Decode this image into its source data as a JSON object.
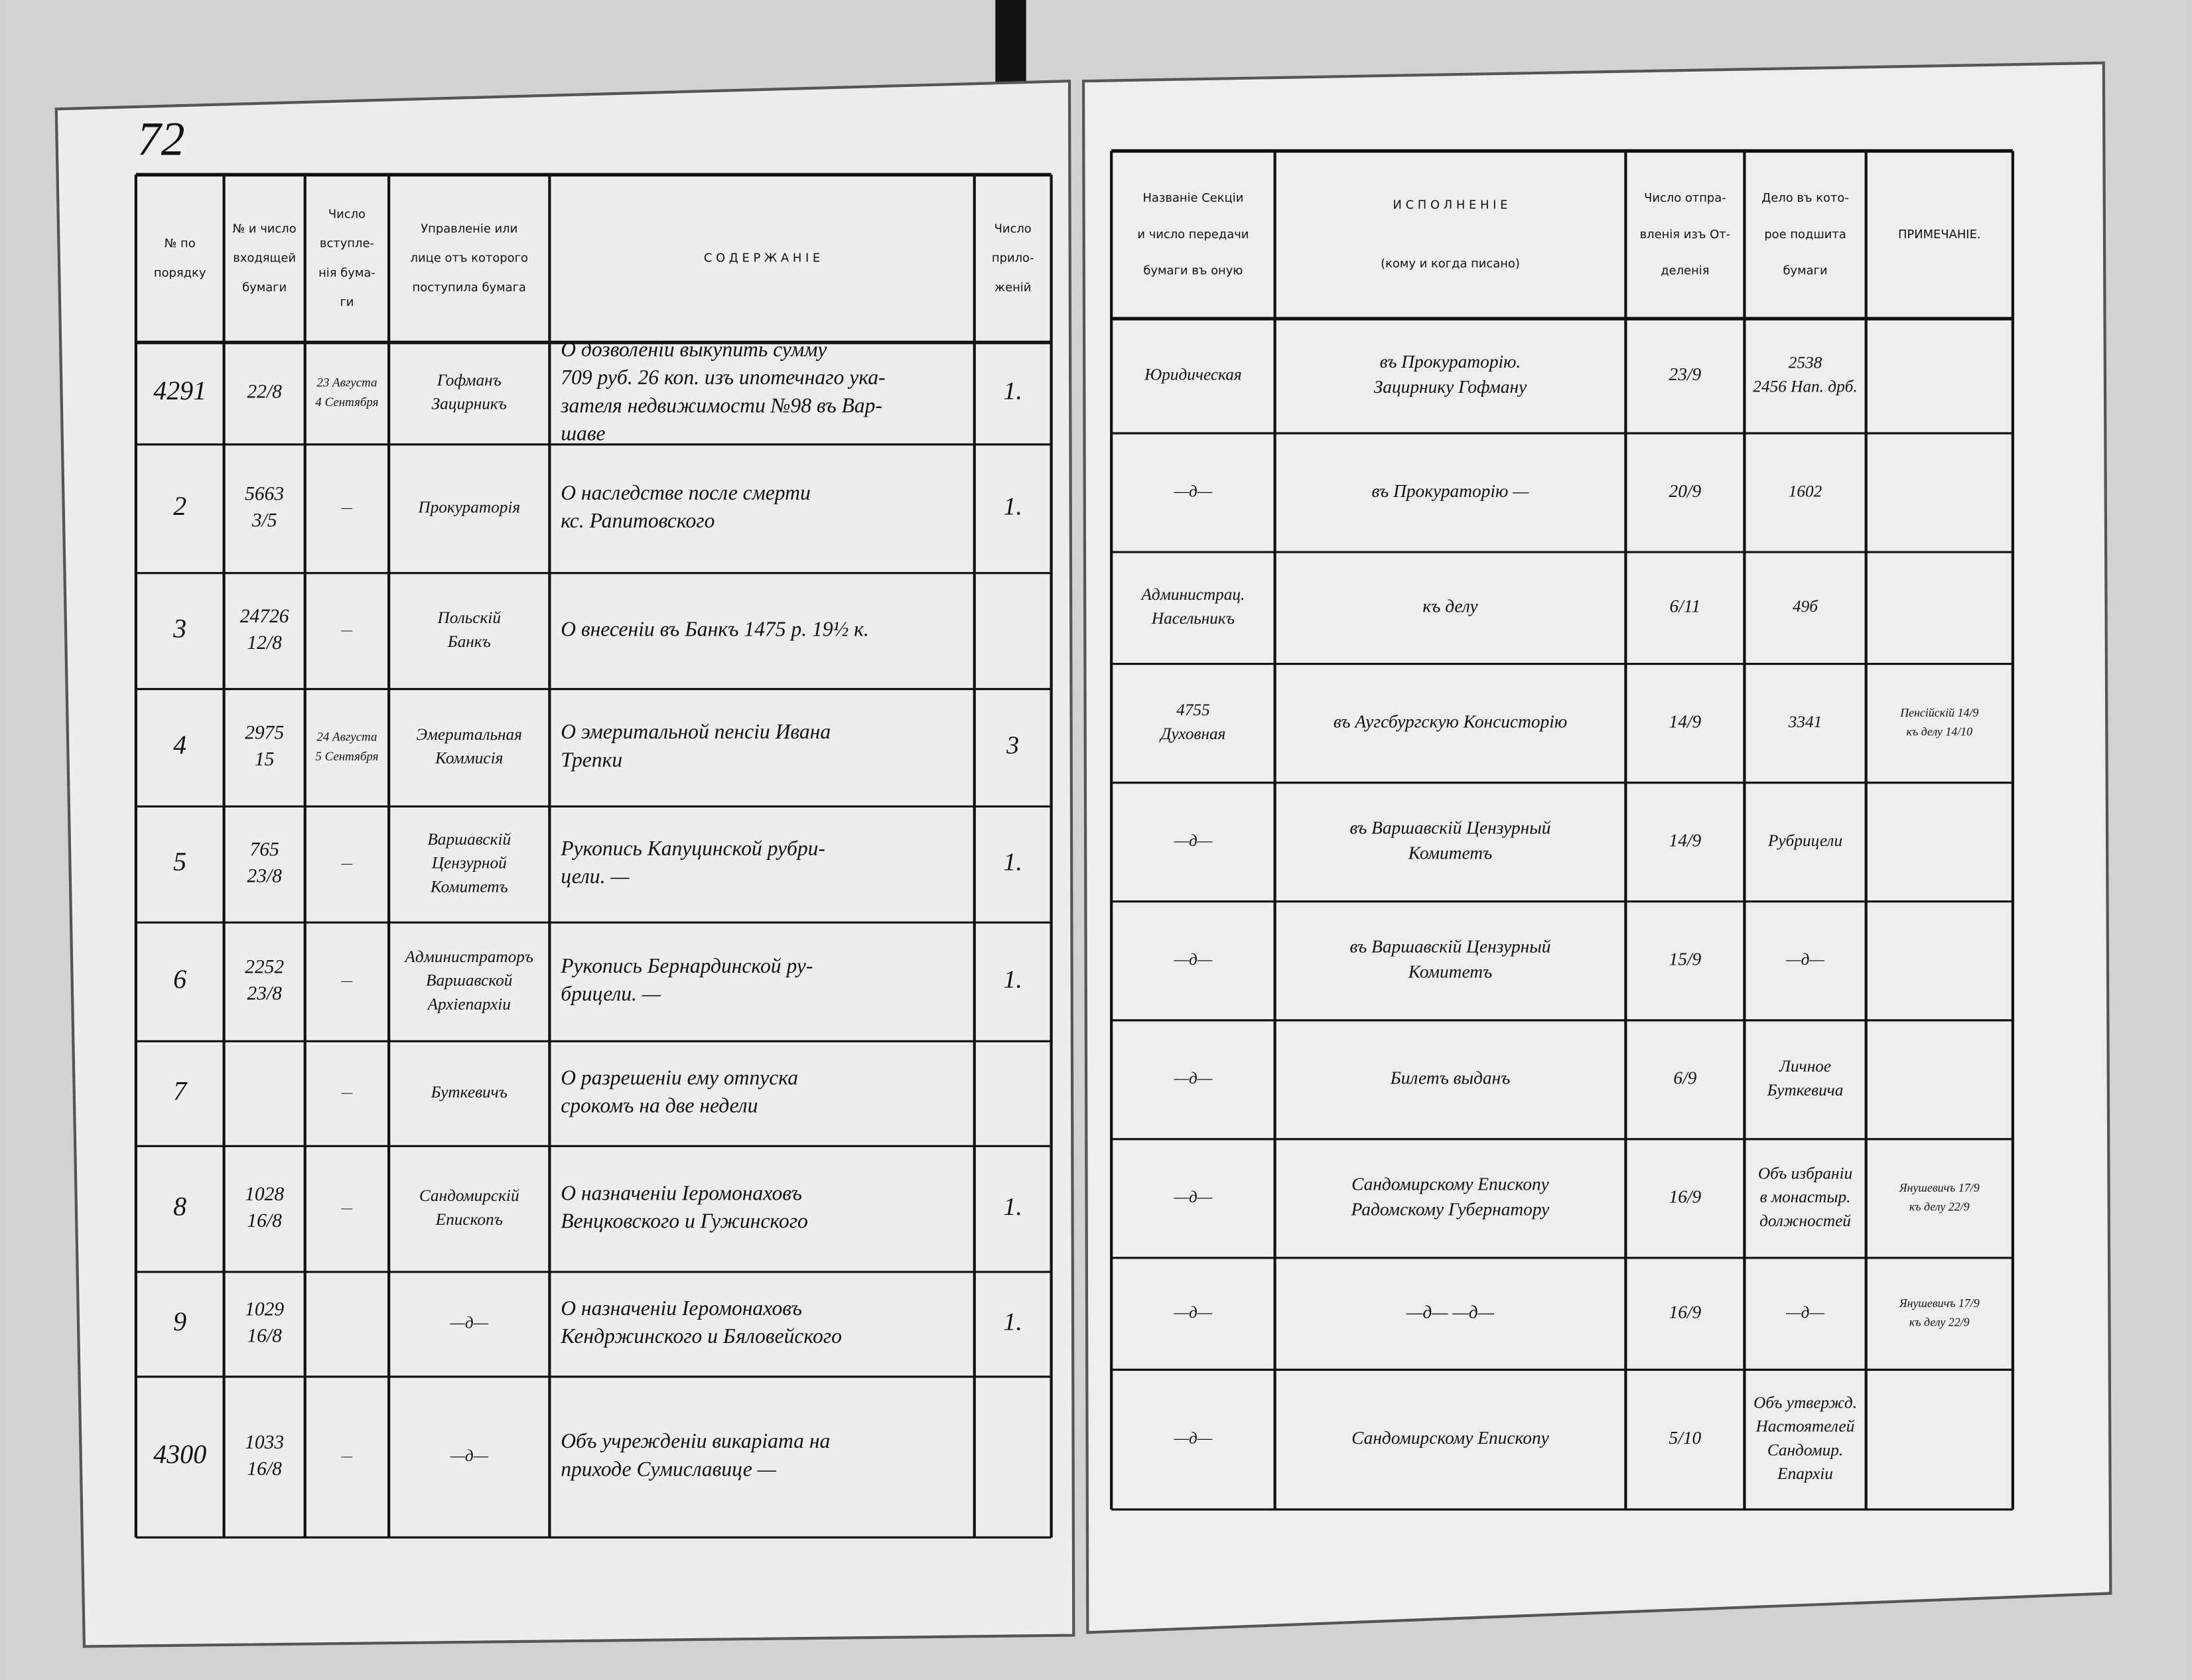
{
  "page_number": "72",
  "left_headers": [
    [
      "№ по",
      "порядку"
    ],
    [
      "№ и число",
      "входящей",
      "бумаги"
    ],
    [
      "Число",
      "вступле-",
      "нія бума-",
      "ги"
    ],
    [
      "Управленіе или",
      "лице отъ которого",
      "поступила бумага"
    ],
    [
      "С О Д Е Р Ж А Н І Е"
    ],
    [
      "Число",
      "прило-",
      "женій"
    ]
  ],
  "right_headers": [
    [
      "Названіе Секціи",
      "и число передачи",
      "бумаги въ оную"
    ],
    [
      "И С П О Л Н Е Н І Е",
      "(кому и когда писано)"
    ],
    [
      "Число отпра-",
      "вленія изъ От-",
      "деленія"
    ],
    [
      "Дело въ кото-",
      "рое подшита",
      "бумаги"
    ],
    [
      "ПРИМЕЧАНІЕ."
    ]
  ],
  "rows": [
    {
      "n": [
        "4291"
      ],
      "incoming": [
        "22/8"
      ],
      "date": [
        "23 Августа",
        "4 Сентября"
      ],
      "sender": [
        "Гофманъ",
        "Зацирникъ"
      ],
      "content": [
        "О дозволеніи выкупить сумму",
        "709 руб. 26 коп. изъ ипотечнаго ука-",
        "зателя недвижимости №98 въ Вар-",
        "шаве"
      ],
      "attachments": [
        "1."
      ],
      "section": [
        "Юридическая"
      ],
      "execution": [
        "въ Прокураторію.",
        "Зацирнику Гофману"
      ],
      "sent": [
        "23/9"
      ],
      "case": [
        "2538",
        "2456 Нап. дрб."
      ]
    },
    {
      "n": [
        "2"
      ],
      "incoming": [
        "5663",
        "3/5"
      ],
      "date": [
        "—"
      ],
      "sender": [
        "Прокураторія"
      ],
      "content": [
        "О наследстве после смерти",
        "кс. Рапитовского"
      ],
      "attachments": [
        "1."
      ],
      "section": [
        "—д—"
      ],
      "execution": [
        "въ Прокураторію —"
      ],
      "sent": [
        "20/9"
      ],
      "case": [
        "1602"
      ]
    },
    {
      "n": [
        "3"
      ],
      "incoming": [
        "24726",
        "12/8"
      ],
      "date": [
        "—"
      ],
      "sender": [
        "Польскій",
        "Банкъ"
      ],
      "content": [
        "О внесеніи въ Банкъ 1475 р. 19½ к."
      ],
      "section": [
        "Администрац.",
        "Насельникъ"
      ],
      "execution": [
        "къ делу"
      ],
      "sent": [
        "6/11"
      ],
      "case": [
        "49б"
      ]
    },
    {
      "n": [
        "4"
      ],
      "incoming": [
        "2975",
        "15"
      ],
      "date": [
        "24 Августа",
        "5 Сентября"
      ],
      "sender": [
        "Эмеритальная",
        "Коммисія"
      ],
      "content": [
        "О эмеритальной пенсіи Ивана",
        "Трепки"
      ],
      "attachments": [
        "3"
      ],
      "section": [
        "4755",
        "Духовная"
      ],
      "execution": [
        "въ Аугсбургскую Консисторію"
      ],
      "sent": [
        "14/9"
      ],
      "case": [
        "3341"
      ],
      "note": [
        "Пенсійскій 14/9",
        "къ делу 14/10"
      ]
    },
    {
      "n": [
        "5"
      ],
      "incoming": [
        "765",
        "23/8"
      ],
      "date": [
        "—"
      ],
      "sender": [
        "Варшавскій",
        "Цензурной",
        "Комитетъ"
      ],
      "content": [
        "Рукопись Капуцинской рубри-",
        "цели. —"
      ],
      "attachments": [
        "1."
      ],
      "section": [
        "—д—"
      ],
      "execution": [
        "въ Варшавскій Цензурный",
        "Комитетъ"
      ],
      "sent": [
        "14/9"
      ],
      "case": [
        "Рубрицели"
      ]
    },
    {
      "n": [
        "6"
      ],
      "incoming": [
        "2252",
        "23/8"
      ],
      "date": [
        "—"
      ],
      "sender": [
        "Администраторъ",
        "Варшавской",
        "Архіепархіи"
      ],
      "content": [
        "Рукопись Бернардинской ру-",
        "брицели. —"
      ],
      "attachments": [
        "1."
      ],
      "section": [
        "—д—"
      ],
      "execution": [
        "въ Варшавскій Цензурный",
        "Комитетъ"
      ],
      "sent": [
        "15/9"
      ],
      "case": [
        "—д—"
      ]
    },
    {
      "n": [
        "7"
      ],
      "date": [
        "—"
      ],
      "sender": [
        "Буткевичъ"
      ],
      "content": [
        "О разрешеніи ему отпуска",
        "срокомъ на две недели"
      ],
      "section": [
        "—д—"
      ],
      "execution": [
        "Билетъ выданъ"
      ],
      "sent": [
        "6/9"
      ],
      "case": [
        "Личное",
        "Буткевича"
      ]
    },
    {
      "n": [
        "8"
      ],
      "incoming": [
        "1028",
        "16/8"
      ],
      "date": [
        "—"
      ],
      "sender": [
        "Сандомирскій",
        "Епископъ"
      ],
      "content": [
        "О назначеніи Іеромонаховъ",
        "Венцковского и Гужинского"
      ],
      "attachments": [
        "1."
      ],
      "section": [
        "—д—"
      ],
      "execution": [
        "Сандомирскому Епископу",
        "Радомскому Губернатору"
      ],
      "sent": [
        "16/9"
      ],
      "case": [
        "Объ избраніи",
        "в монастыр.",
        "должностей"
      ],
      "note": [
        "Янушевичъ 17/9",
        "къ делу 22/9"
      ]
    },
    {
      "n": [
        "9"
      ],
      "incoming": [
        "1029",
        "16/8"
      ],
      "sender": [
        "—д—"
      ],
      "content": [
        "О назначеніи Іеромонаховъ",
        "Кендржинского и Бяловейского"
      ],
      "attachments": [
        "1."
      ],
      "section": [
        "—д—"
      ],
      "execution": [
        "—д— —д—"
      ],
      "sent": [
        "16/9"
      ],
      "case": [
        "—д—"
      ],
      "note": [
        "Янушевичъ 17/9",
        "къ делу 22/9"
      ]
    },
    {
      "n": [
        "4300"
      ],
      "incoming": [
        "1033",
        "16/8"
      ],
      "date": [
        "—"
      ],
      "sender": [
        "—д—"
      ],
      "content": [
        "Объ учрежденіи викаріата на",
        "приходе Сумиславице —"
      ],
      "section": [
        "—д—"
      ],
      "execution": [
        "Сандомирскому Епископу"
      ],
      "sent": [
        "5/10"
      ],
      "case": [
        "Объ утвержд.",
        "Настоятелей",
        "Сандомир.",
        "Епархіи"
      ]
    }
  ]
}
